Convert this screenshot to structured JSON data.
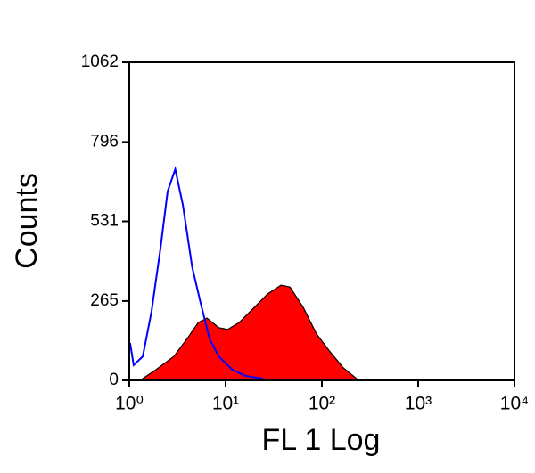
{
  "chart_data": {
    "type": "histogram",
    "x_label": "FL 1 Log",
    "y_label": "Counts",
    "xscale": "log",
    "xlim": [
      1,
      10000
    ],
    "ylim": [
      0,
      1062
    ],
    "xticks": [
      {
        "value": 1,
        "label": "10⁰"
      },
      {
        "value": 10,
        "label": "10¹"
      },
      {
        "value": 100,
        "label": "10²"
      },
      {
        "value": 1000,
        "label": "10³"
      },
      {
        "value": 10000,
        "label": "10⁴"
      }
    ],
    "yticks": [
      0,
      265,
      531,
      796,
      1062
    ],
    "series": [
      {
        "style": "area",
        "color": "#ff0000",
        "outline": "#000000",
        "x": [
          1.38,
          1.9,
          2.9,
          4.0,
          5.2,
          6.4,
          8.5,
          10.5,
          13.8,
          19.9,
          27.4,
          37.6,
          46.6,
          64,
          88,
          122,
          167,
          229
        ],
        "values": [
          6,
          36,
          80,
          140,
          193,
          208,
          176,
          170,
          193,
          244,
          289,
          318,
          312,
          244,
          155,
          95,
          42,
          6
        ]
      },
      {
        "style": "line",
        "color": "#0000ff",
        "x": [
          1.02,
          1.11,
          1.38,
          1.7,
          2.1,
          2.5,
          3.0,
          3.6,
          4.5,
          5.5,
          6.8,
          8.5,
          11.7,
          16,
          24.5
        ],
        "values": [
          125,
          51,
          80,
          229,
          437,
          631,
          705,
          586,
          378,
          259,
          140,
          80,
          36,
          15,
          6
        ]
      }
    ]
  }
}
